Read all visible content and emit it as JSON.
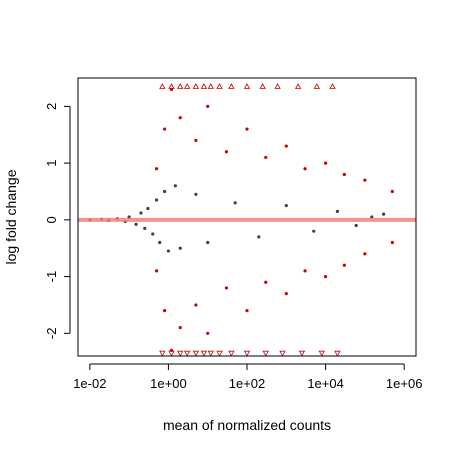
{
  "chart_data": {
    "type": "scatter",
    "title": "",
    "xlabel": "mean of normalized counts",
    "ylabel": "log fold change",
    "x_scale": "log10",
    "xlim": [
      0.005,
      2000000
    ],
    "ylim": [
      -2.4,
      2.5
    ],
    "x_ticks": [
      {
        "value": 0.01,
        "label": "1e-02"
      },
      {
        "value": 1,
        "label": "1e+00"
      },
      {
        "value": 100,
        "label": "1e+02"
      },
      {
        "value": 10000,
        "label": "1e+04"
      },
      {
        "value": 1000000,
        "label": "1e+06"
      }
    ],
    "y_ticks": [
      {
        "value": -2,
        "label": "-2"
      },
      {
        "value": -1,
        "label": "-1"
      },
      {
        "value": 0,
        "label": "0"
      },
      {
        "value": 1,
        "label": "1"
      },
      {
        "value": 2,
        "label": "2"
      }
    ],
    "reference_line": {
      "y": 0,
      "color": "#f08080"
    },
    "colors": {
      "significant": "#cc0000",
      "not_significant": "#404040"
    },
    "series": [
      {
        "significant": false,
        "points": [
          [
            0.01,
            0.0
          ],
          [
            0.02,
            0.01
          ],
          [
            0.03,
            -0.01
          ],
          [
            0.05,
            0.02
          ],
          [
            0.08,
            -0.03
          ],
          [
            0.1,
            0.05
          ],
          [
            0.15,
            -0.08
          ],
          [
            0.2,
            0.12
          ],
          [
            0.25,
            -0.15
          ],
          [
            0.3,
            0.2
          ],
          [
            0.4,
            -0.25
          ],
          [
            0.5,
            0.35
          ],
          [
            0.6,
            -0.4
          ],
          [
            0.8,
            0.5
          ],
          [
            1.0,
            -0.55
          ],
          [
            1.5,
            0.6
          ],
          [
            2,
            -0.5
          ],
          [
            5,
            0.45
          ],
          [
            10,
            -0.4
          ],
          [
            50,
            0.3
          ],
          [
            200,
            -0.3
          ],
          [
            1000,
            0.25
          ],
          [
            5000,
            -0.2
          ],
          [
            20000,
            0.15
          ],
          [
            60000,
            -0.1
          ],
          [
            150000,
            0.05
          ],
          [
            300000,
            0.1
          ]
        ]
      },
      {
        "significant": true,
        "points": [
          [
            0.5,
            0.9
          ],
          [
            0.8,
            1.6
          ],
          [
            1.2,
            2.3
          ],
          [
            2,
            1.8
          ],
          [
            5,
            1.4
          ],
          [
            10,
            2.0
          ],
          [
            30,
            1.2
          ],
          [
            100,
            1.6
          ],
          [
            300,
            1.1
          ],
          [
            1000,
            1.3
          ],
          [
            3000,
            0.9
          ],
          [
            10000,
            1.0
          ],
          [
            30000,
            0.8
          ],
          [
            100000,
            0.7
          ],
          [
            500000,
            0.5
          ],
          [
            0.5,
            -0.9
          ],
          [
            0.8,
            -1.6
          ],
          [
            1.2,
            -2.3
          ],
          [
            2,
            -1.9
          ],
          [
            5,
            -1.5
          ],
          [
            10,
            -2.0
          ],
          [
            30,
            -1.2
          ],
          [
            100,
            -1.6
          ],
          [
            300,
            -1.1
          ],
          [
            1000,
            -1.3
          ],
          [
            3000,
            -0.9
          ],
          [
            10000,
            -1.0
          ],
          [
            30000,
            -0.8
          ],
          [
            100000,
            -0.6
          ],
          [
            500000,
            -0.4
          ]
        ]
      }
    ],
    "clipped_markers": {
      "top_value": 2.35,
      "bottom_value": -2.35,
      "top_x": [
        0.7,
        1.2,
        2,
        3,
        5,
        8,
        12,
        20,
        40,
        100,
        250,
        600,
        2000,
        6000,
        15000
      ],
      "bottom_x": [
        0.7,
        1.2,
        2,
        3,
        5,
        8,
        12,
        20,
        40,
        100,
        300,
        800,
        2500,
        8000,
        20000
      ]
    }
  }
}
